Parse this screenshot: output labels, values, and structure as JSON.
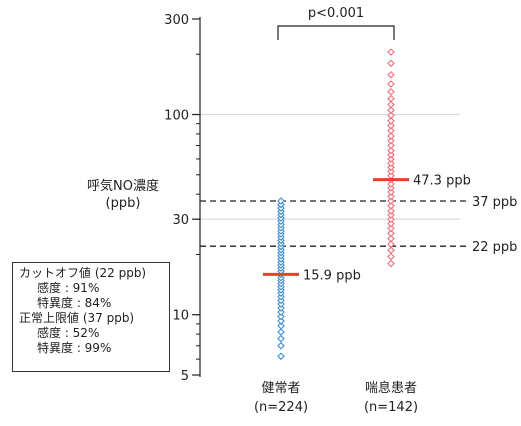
{
  "chart_data": {
    "type": "scatter",
    "ylabel": "呼気NO濃度",
    "yunit": "(ppb)",
    "yscale": "log",
    "ylim": [
      5,
      300
    ],
    "y_ticks": [
      5,
      10,
      30,
      100,
      300
    ],
    "grid_y": [
      30,
      100
    ],
    "categories": [
      "健常者",
      "喘息患者"
    ],
    "category_n": [
      "(n=224)",
      "(n=142)"
    ],
    "series": [
      {
        "name": "健常者",
        "color": "#3b8fd6",
        "median": 15.9,
        "median_label": "15.9 ppb",
        "values": [
          6.2,
          7,
          7.6,
          8.2,
          8.8,
          9.3,
          9.8,
          10.3,
          10.8,
          11.3,
          11.8,
          12.3,
          12.8,
          13.3,
          13.8,
          14.3,
          14.8,
          15.3,
          15.9,
          16.5,
          17.1,
          17.7,
          18.3,
          19,
          19.7,
          20.4,
          21.1,
          21.9,
          22.7,
          23.5,
          24.4,
          25.3,
          26.2,
          27.2,
          28.2,
          29.3,
          30.4,
          31.6,
          32.8,
          34.1,
          35.5,
          37
        ]
      },
      {
        "name": "喘息患者",
        "color": "#e8707a",
        "median": 47.3,
        "median_label": "47.3 ppb",
        "values": [
          18,
          19.5,
          21,
          22.5,
          24,
          25.5,
          27,
          28.5,
          30,
          31.5,
          33,
          35,
          37,
          39,
          41,
          43,
          45,
          47.3,
          49.5,
          52,
          54.5,
          57,
          60,
          63,
          66,
          70,
          74,
          78,
          83,
          88,
          93,
          99,
          105,
          112,
          120,
          130,
          142,
          158,
          180,
          205
        ]
      }
    ],
    "reference_lines": [
      {
        "value": 37,
        "label": "37 ppb"
      },
      {
        "value": 22,
        "label": "22 ppb"
      }
    ],
    "significance": "p<0.001",
    "annotation": {
      "lines": [
        "カットオフ値 (22 ppb)",
        "感度 : 91%",
        "特異度 : 84%",
        "正常上限値 (37 ppb)",
        "感度 : 52%",
        "特異度 : 99%"
      ]
    }
  }
}
